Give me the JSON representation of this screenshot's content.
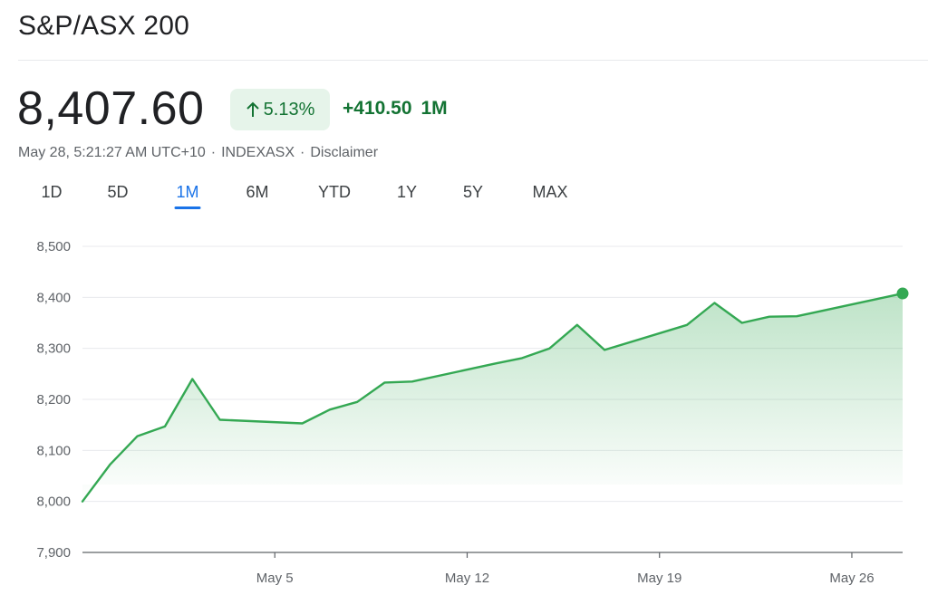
{
  "header": {
    "title": "S&P/ASX 200",
    "price": "8,407.60",
    "change_percent": "5.13%",
    "change_value": "+410.50",
    "change_period": "1M",
    "timestamp": "May 28, 5:21:27 AM UTC+10",
    "exchange": "INDEXASX",
    "disclaimer": "Disclaimer",
    "positive_color": "#137333",
    "up_arrow_icon": "arrow-up-icon"
  },
  "tabs": [
    {
      "label": "1D",
      "active": false
    },
    {
      "label": "5D",
      "active": false
    },
    {
      "label": "1M",
      "active": true
    },
    {
      "label": "6M",
      "active": false
    },
    {
      "label": "YTD",
      "active": false
    },
    {
      "label": "1Y",
      "active": false
    },
    {
      "label": "5Y",
      "active": false
    },
    {
      "label": "MAX",
      "active": false
    }
  ],
  "chart_data": {
    "type": "area",
    "title": "",
    "xlabel": "",
    "ylabel": "",
    "ylim": [
      7900,
      8500
    ],
    "yticks": [
      7900,
      8000,
      8100,
      8200,
      8300,
      8400,
      8500
    ],
    "ytick_labels": [
      "7,900",
      "8,000",
      "8,100",
      "8,200",
      "8,300",
      "8,400",
      "8,500"
    ],
    "xticks": [
      {
        "label": "May 5",
        "x": "2024-05-05"
      },
      {
        "label": "May 12",
        "x": "2024-05-12"
      },
      {
        "label": "May 19",
        "x": "2024-05-19"
      },
      {
        "label": "May 26",
        "x": "2024-05-26"
      }
    ],
    "xlim": [
      "2024-04-28",
      "2024-05-27T20:21:27"
    ],
    "series": [
      {
        "color": "#34a853",
        "points": [
          {
            "x": "2024-04-28",
            "y": 8000
          },
          {
            "x": "2024-04-29",
            "y": 8072
          },
          {
            "x": "2024-04-30",
            "y": 8128
          },
          {
            "x": "2024-05-01",
            "y": 8147
          },
          {
            "x": "2024-05-02",
            "y": 8240
          },
          {
            "x": "2024-05-03",
            "y": 8160
          },
          {
            "x": "2024-05-06",
            "y": 8153
          },
          {
            "x": "2024-05-07",
            "y": 8180
          },
          {
            "x": "2024-05-08",
            "y": 8195
          },
          {
            "x": "2024-05-09",
            "y": 8233
          },
          {
            "x": "2024-05-10",
            "y": 8235
          },
          {
            "x": "2024-05-13",
            "y": 8270
          },
          {
            "x": "2024-05-14",
            "y": 8281
          },
          {
            "x": "2024-05-15",
            "y": 8300
          },
          {
            "x": "2024-05-16",
            "y": 8346
          },
          {
            "x": "2024-05-17",
            "y": 8297
          },
          {
            "x": "2024-05-20",
            "y": 8346
          },
          {
            "x": "2024-05-21",
            "y": 8389
          },
          {
            "x": "2024-05-22",
            "y": 8350
          },
          {
            "x": "2024-05-23",
            "y": 8362
          },
          {
            "x": "2024-05-24",
            "y": 8363
          },
          {
            "x": "2024-05-27T20:21:27",
            "y": 8407.6
          }
        ]
      }
    ],
    "grid": true,
    "area_fill": true,
    "last_point_marker": true
  }
}
